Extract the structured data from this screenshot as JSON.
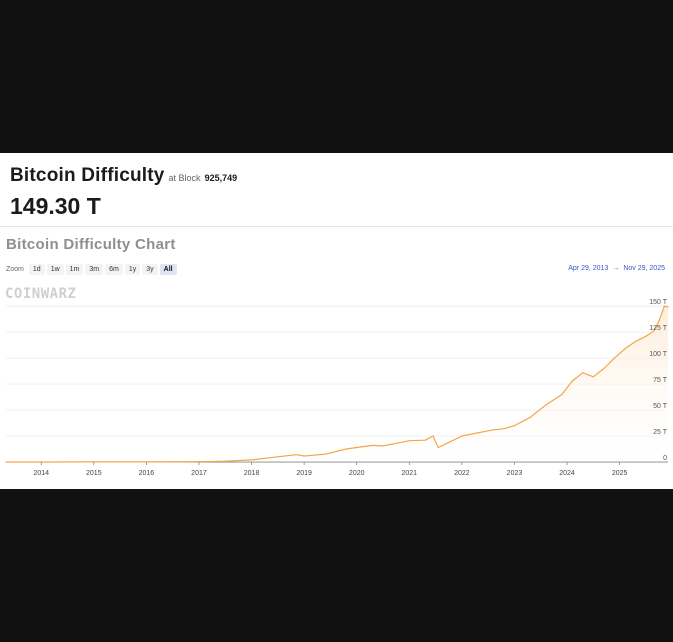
{
  "header": {
    "title": "Bitcoin Difficulty",
    "at_block_label": "at Block",
    "block_number": "925,749",
    "current_value": "149.30 T"
  },
  "chart_title": "Bitcoin Difficulty Chart",
  "zoom": {
    "label": "Zoom",
    "options": [
      "1d",
      "1w",
      "1m",
      "3m",
      "6m",
      "1y",
      "3y",
      "All"
    ],
    "active": "All"
  },
  "range": {
    "from": "Apr 29, 2013",
    "arrow": "→",
    "to": "Nov 29, 2025"
  },
  "watermark": "COINWARZ",
  "colors": {
    "line": "#f5a54a",
    "fill": "#fdebd6",
    "accent": "#3b56c9"
  },
  "chart_data": {
    "type": "area",
    "title": "Bitcoin Difficulty Chart",
    "xlabel": "",
    "ylabel": "",
    "x_ticks": [
      "2014",
      "2015",
      "2016",
      "2017",
      "2018",
      "2019",
      "2020",
      "2021",
      "2022",
      "2023",
      "2024",
      "2025"
    ],
    "y_ticks": [
      "0",
      "25 T",
      "50 T",
      "75 T",
      "100 T",
      "125 T",
      "150 T"
    ],
    "ylim": [
      0,
      155
    ],
    "xlim": [
      2013.33,
      2025.92
    ],
    "grid": true,
    "series": [
      {
        "x": [
          2013.33,
          2014.0,
          2015.0,
          2016.0,
          2017.0,
          2017.5,
          2018.0,
          2018.5,
          2018.85,
          2019.0,
          2019.4,
          2019.8,
          2020.0,
          2020.3,
          2020.5,
          2020.8,
          2021.0,
          2021.3,
          2021.45,
          2021.55,
          2021.8,
          2022.0,
          2022.3,
          2022.6,
          2022.8,
          2023.0,
          2023.3,
          2023.6,
          2023.9,
          2024.1,
          2024.3,
          2024.5,
          2024.7,
          2024.9,
          2025.1,
          2025.3,
          2025.5,
          2025.65,
          2025.75,
          2025.85,
          2025.92
        ],
        "values": [
          0.0,
          0.0,
          0.05,
          0.1,
          0.3,
          0.8,
          2.0,
          5.0,
          7.0,
          5.8,
          7.5,
          12.5,
          14.0,
          16.0,
          15.5,
          18.5,
          20.5,
          21.0,
          25.0,
          14.0,
          20.0,
          25.0,
          28.0,
          31.0,
          32.0,
          35.0,
          43.0,
          55.0,
          65.0,
          78.0,
          86.0,
          82.0,
          90.0,
          100.0,
          109.0,
          116.0,
          121.0,
          126.0,
          136.0,
          150.0,
          149.3
        ]
      }
    ]
  }
}
